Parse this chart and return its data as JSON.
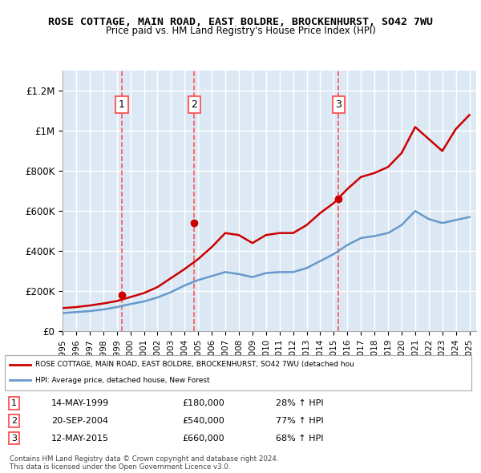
{
  "title": "ROSE COTTAGE, MAIN ROAD, EAST BOLDRE, BROCKENHURST, SO42 7WU",
  "subtitle": "Price paid vs. HM Land Registry's House Price Index (HPI)",
  "background_color": "#ffffff",
  "plot_bg_color": "#dce9f5",
  "grid_color": "#ffffff",
  "ylim": [
    0,
    1300000
  ],
  "yticks": [
    0,
    200000,
    400000,
    600000,
    800000,
    1000000,
    1200000
  ],
  "ytick_labels": [
    "£0",
    "£200K",
    "£400K",
    "£600K",
    "£800K",
    "£1M",
    "£1.2M"
  ],
  "hpi_years": [
    1995,
    1996,
    1997,
    1998,
    1999,
    2000,
    2001,
    2002,
    2003,
    2004,
    2005,
    2006,
    2007,
    2008,
    2009,
    2010,
    2011,
    2012,
    2013,
    2014,
    2015,
    2016,
    2017,
    2018,
    2019,
    2020,
    2021,
    2022,
    2023,
    2024,
    2025
  ],
  "hpi_values": [
    90000,
    95000,
    100000,
    108000,
    120000,
    135000,
    148000,
    168000,
    195000,
    228000,
    255000,
    275000,
    295000,
    285000,
    270000,
    290000,
    295000,
    295000,
    315000,
    350000,
    385000,
    430000,
    465000,
    475000,
    490000,
    530000,
    600000,
    560000,
    540000,
    555000,
    570000
  ],
  "red_years": [
    1995,
    1996,
    1997,
    1998,
    1999,
    2000,
    2001,
    2002,
    2003,
    2004,
    2005,
    2006,
    2007,
    2008,
    2009,
    2010,
    2011,
    2012,
    2013,
    2014,
    2015,
    2016,
    2017,
    2018,
    2019,
    2020,
    2021,
    2022,
    2023,
    2024,
    2025
  ],
  "red_values": [
    115000,
    120000,
    128000,
    138000,
    150000,
    170000,
    190000,
    220000,
    265000,
    310000,
    360000,
    420000,
    490000,
    480000,
    440000,
    480000,
    490000,
    490000,
    530000,
    590000,
    640000,
    710000,
    770000,
    790000,
    820000,
    890000,
    1020000,
    960000,
    900000,
    1010000,
    1080000
  ],
  "sale_points": [
    {
      "year": 1999.37,
      "value": 180000,
      "label": "1"
    },
    {
      "year": 2004.72,
      "value": 540000,
      "label": "2"
    },
    {
      "year": 2015.36,
      "value": 660000,
      "label": "3"
    }
  ],
  "legend_red": "ROSE COTTAGE, MAIN ROAD, EAST BOLDRE, BROCKENHURST, SO42 7WU (detached hou",
  "legend_blue": "HPI: Average price, detached house, New Forest",
  "table_rows": [
    {
      "num": "1",
      "date": "14-MAY-1999",
      "price": "£180,000",
      "change": "28% ↑ HPI"
    },
    {
      "num": "2",
      "date": "20-SEP-2004",
      "price": "£540,000",
      "change": "77% ↑ HPI"
    },
    {
      "num": "3",
      "date": "12-MAY-2015",
      "price": "£660,000",
      "change": "68% ↑ HPI"
    }
  ],
  "footer": "Contains HM Land Registry data © Crown copyright and database right 2024.\nThis data is licensed under the Open Government Licence v3.0.",
  "red_color": "#cc0000",
  "blue_color": "#6699cc",
  "dashed_color": "#ff4444"
}
